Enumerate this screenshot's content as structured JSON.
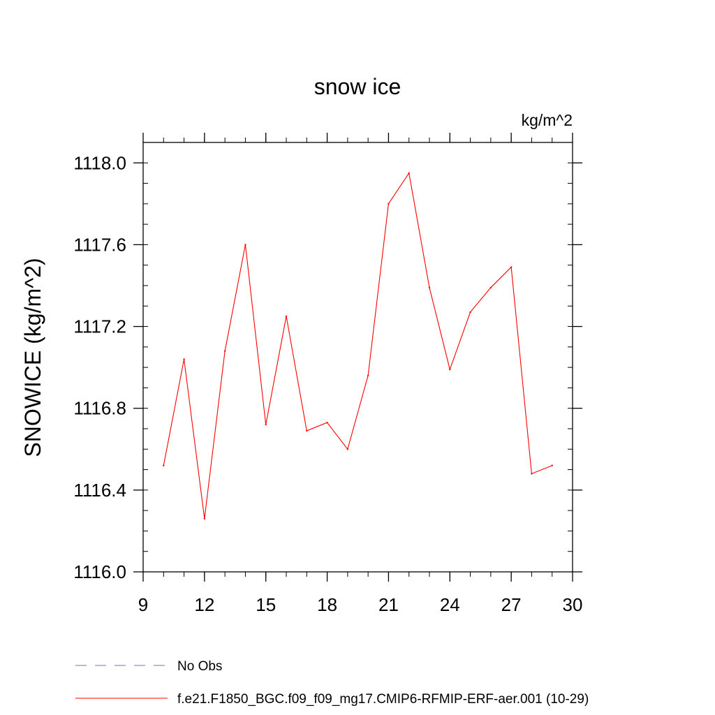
{
  "chart_data": {
    "type": "line",
    "title": "snow ice",
    "units_label": "kg/m^2",
    "ylabel": "SNOWICE  (kg/m^2)",
    "xlabel": "",
    "xlim": [
      9,
      30
    ],
    "ylim": [
      1116.0,
      1118.1
    ],
    "x_ticks": [
      9,
      12,
      15,
      18,
      21,
      24,
      27,
      30
    ],
    "x_tick_labels": [
      "9",
      "12",
      "15",
      "18",
      "21",
      "24",
      "27",
      "30"
    ],
    "y_ticks": [
      1116.0,
      1116.4,
      1116.8,
      1117.2,
      1117.6,
      1118.0
    ],
    "y_tick_labels": [
      "1116.0",
      "1116.4",
      "1116.8",
      "1117.2",
      "1117.6",
      "1118.0"
    ],
    "grid": false,
    "legend_position": "bottom-left",
    "series": [
      {
        "name": "No Obs",
        "color": "#7a6fae",
        "style": "dashed",
        "x": [],
        "y": []
      },
      {
        "name": "f.e21.F1850_BGC.f09_f09_mg17.CMIP6-RFMIP-ERF-aer.001 (10-29)",
        "color": "#ff0000",
        "style": "solid",
        "x": [
          10,
          11,
          12,
          13,
          14,
          15,
          16,
          17,
          18,
          19,
          20,
          21,
          22,
          23,
          24,
          25,
          26,
          27,
          28,
          29
        ],
        "y": [
          1116.52,
          1117.04,
          1116.26,
          1117.08,
          1117.6,
          1116.72,
          1117.25,
          1116.69,
          1116.73,
          1116.6,
          1116.96,
          1117.8,
          1117.95,
          1117.39,
          1116.99,
          1117.27,
          1117.39,
          1117.49,
          1116.48,
          1116.52
        ]
      }
    ]
  }
}
